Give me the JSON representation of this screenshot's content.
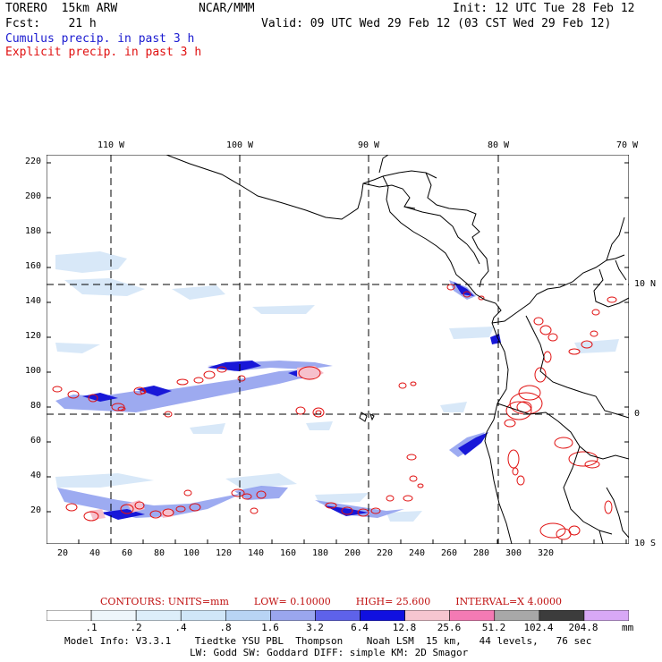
{
  "header": {
    "model": "TORERO  15km ARW",
    "org": "NCAR/MMM",
    "init": "Init: 12 UTC Tue 28 Feb 12",
    "fcst": "Fcst:    21 h",
    "valid": "Valid: 09 UTC Wed 29 Feb 12 (03 CST Wed 29 Feb 12)",
    "line_cumulus": "Cumulus precip. in past 3 h",
    "line_explicit": "Explicit precip. in past 3 h"
  },
  "colors": {
    "cumulus": "#1a1ad0",
    "explicit": "#e01010",
    "coast": "#000000"
  },
  "top_lon_labels": [
    "110 W",
    "100 W",
    "90 W",
    "80 W",
    "70 W"
  ],
  "right_lat_labels": [
    "10 N",
    "0",
    "10 S"
  ],
  "y_ticks": [
    "220",
    "200",
    "180",
    "160",
    "140",
    "120",
    "100",
    "80",
    "60",
    "40",
    "20"
  ],
  "x_ticks": [
    "20",
    "40",
    "60",
    "80",
    "100",
    "120",
    "140",
    "160",
    "180",
    "200",
    "220",
    "240",
    "260",
    "280",
    "300",
    "320"
  ],
  "contours": {
    "units": "CONTOURS:  UNITS=mm",
    "low": "LOW=  0.10000",
    "high": "HIGH=  25.600",
    "interval": "INTERVAL=X  4.0000"
  },
  "colorbar": {
    "labels": [
      ".1",
      ".2",
      ".4",
      ".8",
      "1.6",
      "3.2",
      "6.4",
      "12.8",
      "25.6",
      "51.2",
      "102.4",
      "204.8"
    ],
    "colors": [
      "#ffffff",
      "#eef6fb",
      "#ddeefa",
      "#d0e6f8",
      "#b8d4f4",
      "#9aa6ee",
      "#5e62ea",
      "#1010e0",
      "#f6c6d0",
      "#f47ab4",
      "#a8a8a8",
      "#3c3c3c",
      "#d8a8f6"
    ],
    "unit": "mm"
  },
  "footer": {
    "line1": "Model Info: V3.3.1    Tiedtke YSU PBL  Thompson    Noah LSM  15 km,   44 levels,   76 sec",
    "line2": "LW: Godd SW: Goddard DIFF: simple KM: 2D Smagor"
  }
}
